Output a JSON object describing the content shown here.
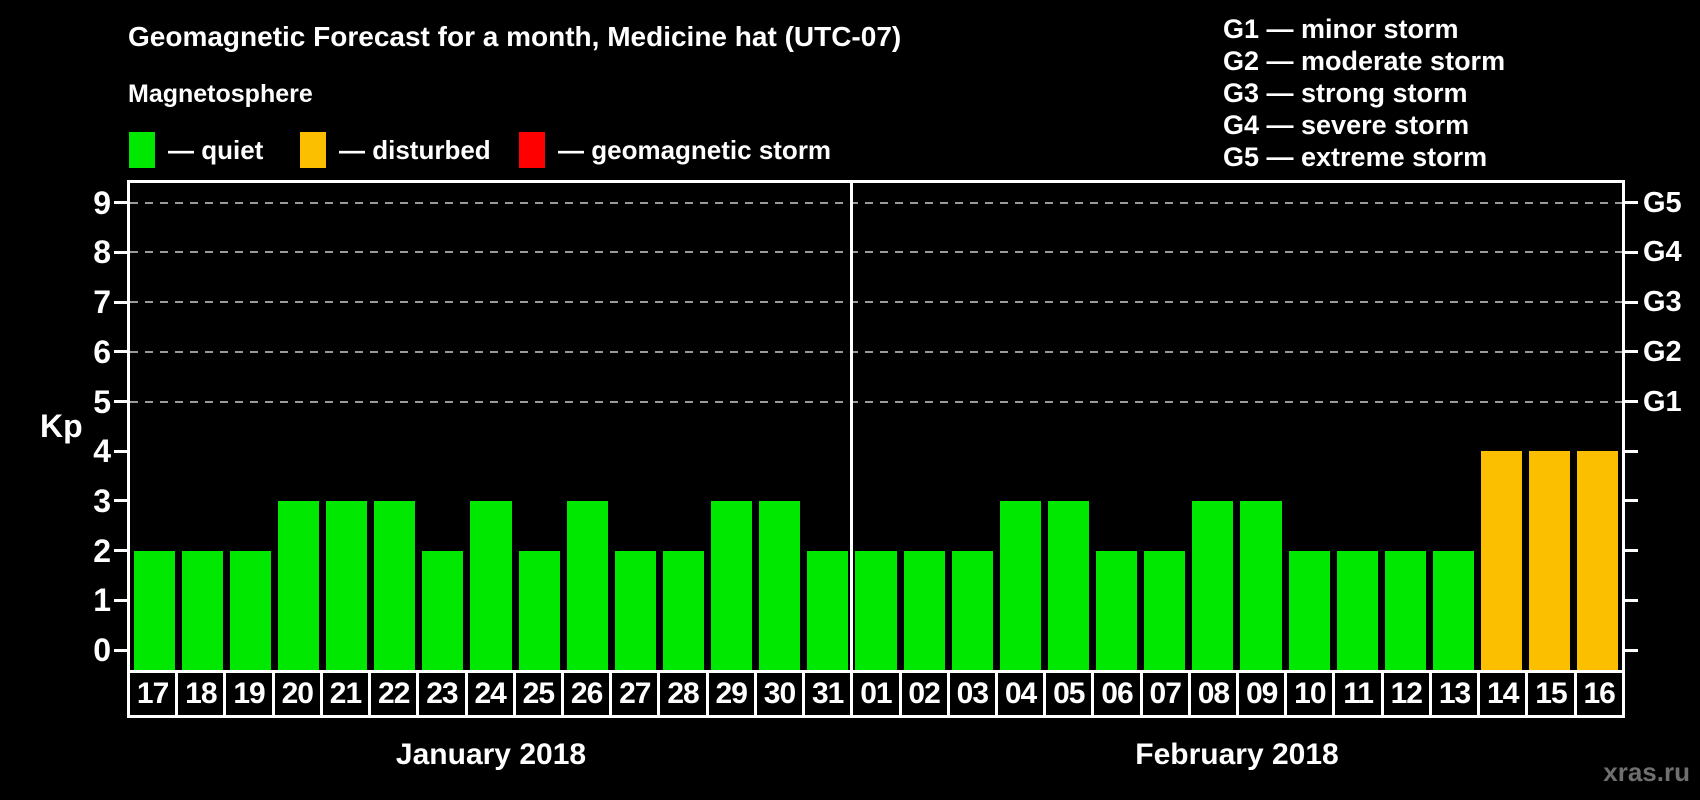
{
  "header": {
    "title": "Geomagnetic Forecast for a month, Medicine hat (UTC-07)",
    "subtitle": "Magnetosphere"
  },
  "legend": {
    "items": [
      {
        "name": "quiet",
        "swatch_color": "#00e800",
        "label": "— quiet"
      },
      {
        "name": "disturbed",
        "swatch_color": "#fcbf00",
        "label": "— disturbed"
      },
      {
        "name": "storm",
        "swatch_color": "#ff0000",
        "label": "— geomagnetic storm"
      }
    ]
  },
  "storm_scale_legend": {
    "items": [
      "G1 — minor storm",
      "G2 — moderate storm",
      "G3 — strong storm",
      "G4 — severe storm",
      "G5 — extreme storm"
    ]
  },
  "chart_data": {
    "type": "bar",
    "title": "Geomagnetic Forecast for a month, Medicine hat (UTC-07)",
    "ylabel": "Kp",
    "ylim": [
      -0.4,
      9.4
    ],
    "yticks": [
      0,
      1,
      2,
      3,
      4,
      5,
      6,
      7,
      8,
      9
    ],
    "grid_levels": [
      5,
      6,
      7,
      8,
      9
    ],
    "grid_on": true,
    "right_axis": [
      {
        "kp": 5,
        "label": "G1"
      },
      {
        "kp": 6,
        "label": "G2"
      },
      {
        "kp": 7,
        "label": "G3"
      },
      {
        "kp": 8,
        "label": "G4"
      },
      {
        "kp": 9,
        "label": "G5"
      }
    ],
    "colors": {
      "quiet": "#00e800",
      "disturbed": "#fcbf00",
      "storm": "#ff0000"
    },
    "months": [
      {
        "label": "January 2018",
        "days": [
          {
            "day": "17",
            "kp": 2,
            "state": "quiet"
          },
          {
            "day": "18",
            "kp": 2,
            "state": "quiet"
          },
          {
            "day": "19",
            "kp": 2,
            "state": "quiet"
          },
          {
            "day": "20",
            "kp": 3,
            "state": "quiet"
          },
          {
            "day": "21",
            "kp": 3,
            "state": "quiet"
          },
          {
            "day": "22",
            "kp": 3,
            "state": "quiet"
          },
          {
            "day": "23",
            "kp": 2,
            "state": "quiet"
          },
          {
            "day": "24",
            "kp": 3,
            "state": "quiet"
          },
          {
            "day": "25",
            "kp": 2,
            "state": "quiet"
          },
          {
            "day": "26",
            "kp": 3,
            "state": "quiet"
          },
          {
            "day": "27",
            "kp": 2,
            "state": "quiet"
          },
          {
            "day": "28",
            "kp": 2,
            "state": "quiet"
          },
          {
            "day": "29",
            "kp": 3,
            "state": "quiet"
          },
          {
            "day": "30",
            "kp": 3,
            "state": "quiet"
          },
          {
            "day": "31",
            "kp": 2,
            "state": "quiet"
          }
        ]
      },
      {
        "label": "February 2018",
        "days": [
          {
            "day": "01",
            "kp": 2,
            "state": "quiet"
          },
          {
            "day": "02",
            "kp": 2,
            "state": "quiet"
          },
          {
            "day": "03",
            "kp": 2,
            "state": "quiet"
          },
          {
            "day": "04",
            "kp": 3,
            "state": "quiet"
          },
          {
            "day": "05",
            "kp": 3,
            "state": "quiet"
          },
          {
            "day": "06",
            "kp": 2,
            "state": "quiet"
          },
          {
            "day": "07",
            "kp": 2,
            "state": "quiet"
          },
          {
            "day": "08",
            "kp": 3,
            "state": "quiet"
          },
          {
            "day": "09",
            "kp": 3,
            "state": "quiet"
          },
          {
            "day": "10",
            "kp": 2,
            "state": "quiet"
          },
          {
            "day": "11",
            "kp": 2,
            "state": "quiet"
          },
          {
            "day": "12",
            "kp": 2,
            "state": "quiet"
          },
          {
            "day": "13",
            "kp": 2,
            "state": "quiet"
          },
          {
            "day": "14",
            "kp": 4,
            "state": "disturbed"
          },
          {
            "day": "15",
            "kp": 4,
            "state": "disturbed"
          },
          {
            "day": "16",
            "kp": 4,
            "state": "disturbed"
          }
        ]
      }
    ]
  },
  "watermark": "xras.ru"
}
